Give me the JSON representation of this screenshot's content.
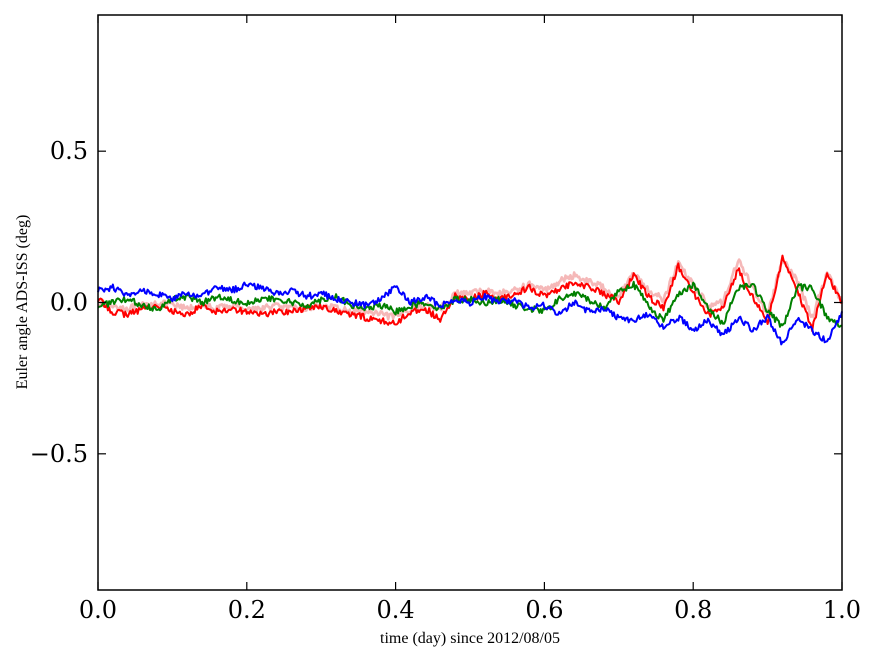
{
  "chart_data": {
    "type": "line",
    "title": "",
    "xlabel": "time (day) since 2012/08/05",
    "ylabel": "Euler angle ADS-ISS (deg)",
    "xlim": [
      0.0,
      1.0
    ],
    "ylim": [
      -0.95,
      0.95
    ],
    "xticks": [
      0.0,
      0.2,
      0.4,
      0.6,
      0.8,
      1.0
    ],
    "xtick_labels": [
      "0.0",
      "0.2",
      "0.4",
      "0.6",
      "0.8",
      "1.0"
    ],
    "yticks": [
      0.5,
      0.0,
      -0.5
    ],
    "ytick_labels": [
      "0.5",
      "0.0",
      "−0.5"
    ],
    "grid": false,
    "legend": "none",
    "x": [
      0.0,
      0.02,
      0.04,
      0.06,
      0.08,
      0.1,
      0.12,
      0.14,
      0.16,
      0.18,
      0.2,
      0.22,
      0.24,
      0.26,
      0.28,
      0.3,
      0.32,
      0.34,
      0.36,
      0.38,
      0.4,
      0.42,
      0.44,
      0.46,
      0.48,
      0.5,
      0.52,
      0.54,
      0.56,
      0.58,
      0.6,
      0.62,
      0.64,
      0.66,
      0.68,
      0.7,
      0.72,
      0.74,
      0.76,
      0.78,
      0.8,
      0.82,
      0.84,
      0.86,
      0.88,
      0.9,
      0.92,
      0.94,
      0.96,
      0.98,
      1.0
    ],
    "series": [
      {
        "color": "#f5b8b8",
        "values": [
          0.0,
          -0.01,
          -0.02,
          -0.01,
          0.0,
          -0.01,
          -0.02,
          -0.01,
          -0.02,
          -0.01,
          -0.02,
          -0.02,
          -0.01,
          -0.02,
          -0.02,
          -0.01,
          -0.02,
          -0.03,
          -0.03,
          -0.04,
          -0.05,
          -0.02,
          -0.01,
          -0.02,
          0.03,
          0.03,
          0.04,
          0.03,
          0.04,
          0.06,
          0.04,
          0.07,
          0.09,
          0.07,
          0.05,
          0.02,
          0.1,
          0.04,
          0.01,
          0.13,
          0.06,
          -0.01,
          0.0,
          0.14,
          0.05,
          -0.04,
          0.14,
          0.07,
          -0.05,
          0.1,
          0.0
        ]
      },
      {
        "color": "#ff0000",
        "values": [
          0.01,
          -0.03,
          -0.04,
          -0.02,
          -0.01,
          -0.03,
          -0.04,
          -0.01,
          -0.03,
          -0.02,
          -0.03,
          -0.04,
          -0.03,
          -0.03,
          -0.02,
          -0.01,
          -0.03,
          -0.04,
          -0.05,
          -0.06,
          -0.07,
          -0.03,
          -0.02,
          -0.06,
          0.02,
          0.01,
          0.03,
          0.01,
          0.03,
          0.05,
          0.02,
          0.04,
          0.07,
          0.05,
          0.03,
          0.0,
          0.09,
          0.02,
          -0.02,
          0.12,
          0.03,
          -0.04,
          -0.02,
          0.11,
          0.02,
          -0.07,
          0.15,
          0.04,
          -0.09,
          0.1,
          -0.01
        ]
      },
      {
        "color": "#008000",
        "values": [
          -0.01,
          0.0,
          0.01,
          -0.01,
          -0.02,
          0.01,
          0.02,
          0.0,
          0.02,
          0.01,
          0.0,
          0.01,
          0.01,
          0.0,
          -0.01,
          0.01,
          0.02,
          -0.01,
          -0.02,
          -0.01,
          -0.03,
          -0.01,
          0.0,
          -0.02,
          0.01,
          0.01,
          0.0,
          0.01,
          -0.01,
          -0.02,
          -0.03,
          0.01,
          0.03,
          0.01,
          -0.02,
          0.04,
          0.06,
          -0.01,
          -0.06,
          0.03,
          0.06,
          -0.02,
          -0.07,
          0.05,
          0.06,
          -0.03,
          -0.08,
          0.05,
          0.05,
          -0.05,
          -0.08
        ]
      },
      {
        "color": "#0000ff",
        "values": [
          0.04,
          0.05,
          0.02,
          0.04,
          0.03,
          0.01,
          0.03,
          0.02,
          0.05,
          0.04,
          0.06,
          0.05,
          0.03,
          0.04,
          0.02,
          0.03,
          0.01,
          0.0,
          -0.01,
          0.01,
          0.05,
          0.0,
          0.02,
          -0.01,
          0.01,
          0.0,
          0.02,
          0.0,
          0.01,
          -0.02,
          -0.01,
          -0.04,
          0.0,
          -0.03,
          -0.02,
          -0.05,
          -0.06,
          -0.04,
          -0.08,
          -0.05,
          -0.09,
          -0.06,
          -0.11,
          -0.05,
          -0.09,
          -0.05,
          -0.14,
          -0.05,
          -0.09,
          -0.13,
          -0.04
        ]
      }
    ]
  }
}
